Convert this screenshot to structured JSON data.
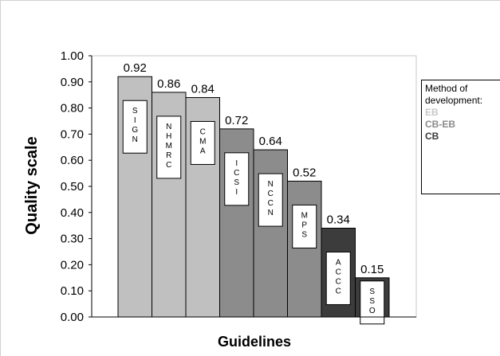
{
  "chart_data": {
    "type": "bar",
    "xlabel": "Guidelines",
    "ylabel": "Quality scale",
    "ylim": [
      0,
      1.0
    ],
    "yticks": [
      "0.00",
      "0.10",
      "0.20",
      "0.30",
      "0.40",
      "0.50",
      "0.60",
      "0.70",
      "0.80",
      "0.90",
      "1.00"
    ],
    "grid": false,
    "legend_placement": "right",
    "bars": [
      {
        "label": "SIGN",
        "value": 0.92,
        "value_label": "0.92",
        "method": "EB"
      },
      {
        "label": "NHMRC",
        "value": 0.86,
        "value_label": "0.86",
        "method": "EB"
      },
      {
        "label": "CMA",
        "value": 0.84,
        "value_label": "0.84",
        "method": "EB"
      },
      {
        "label": "ICSI",
        "value": 0.72,
        "value_label": "0.72",
        "method": "CB-EB"
      },
      {
        "label": "NCCN",
        "value": 0.64,
        "value_label": "0.64",
        "method": "CB-EB"
      },
      {
        "label": "MPS",
        "value": 0.52,
        "value_label": "0.52",
        "method": "CB-EB"
      },
      {
        "label": "ACCC",
        "value": 0.34,
        "value_label": "0.34",
        "method": "CB"
      },
      {
        "label": "SSO",
        "value": 0.15,
        "value_label": "0.15",
        "method": "CB"
      }
    ],
    "legend": {
      "title_line1": "Method of",
      "title_line2": "development:",
      "items": [
        {
          "key": "EB",
          "label": "EB",
          "color": "#c8c8c8"
        },
        {
          "key": "CB-EB",
          "label": "CB-EB",
          "color": "#8a8a8a"
        },
        {
          "key": "CB",
          "label": "CB",
          "color": "#3a3a3a"
        }
      ]
    },
    "colors": {
      "EB": "#c0c0c0",
      "CB-EB": "#8c8c8c",
      "CB": "#3c3c3c",
      "plot_background": "#ffffff",
      "plot_border": "#c8c8c8"
    }
  }
}
